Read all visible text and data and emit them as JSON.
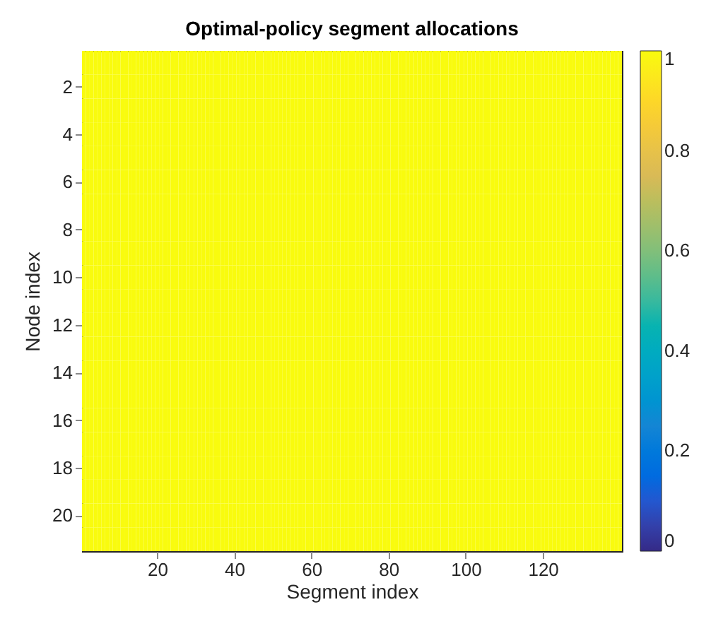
{
  "chart_data": {
    "type": "heatmap",
    "title": "Optimal-policy segment allocations",
    "xlabel": "Segment index",
    "ylabel": "Node index",
    "categories": [
      null,
      null,
      null,
      null,
      null,
      null,
      null,
      null,
      null,
      null,
      null,
      null,
      null,
      null,
      null,
      null,
      null,
      null,
      null,
      "20",
      null,
      null,
      null,
      null,
      null,
      null,
      null,
      null,
      null,
      null,
      null,
      null,
      null,
      null,
      null,
      null,
      null,
      null,
      null,
      "40",
      null,
      null,
      null,
      null,
      null,
      null,
      null,
      null,
      null,
      null,
      null,
      null,
      null,
      null,
      null,
      null,
      null,
      null,
      null,
      "60",
      null,
      null,
      null,
      null,
      null,
      null,
      null,
      null,
      null,
      null,
      null,
      null,
      null,
      null,
      null,
      null,
      null,
      null,
      null,
      "80",
      null,
      null,
      null,
      null,
      null,
      null,
      null,
      null,
      null,
      null,
      null,
      null,
      null,
      null,
      null,
      null,
      null,
      null,
      null,
      "100",
      null,
      null,
      null,
      null,
      null,
      null,
      null,
      null,
      null,
      null,
      null,
      null,
      null,
      null,
      null,
      null,
      null,
      null,
      null,
      "120",
      null,
      null,
      null,
      null,
      null,
      null,
      null,
      null,
      null,
      null,
      null,
      null,
      null,
      null,
      null,
      null,
      null,
      null,
      null,
      null
    ],
    "y_categories": [
      null,
      "2",
      null,
      "4",
      null,
      "6",
      null,
      "8",
      null,
      "10",
      null,
      "12",
      null,
      "14",
      null,
      "16",
      null,
      "18",
      null,
      "20",
      null
    ],
    "cells": [
      [
        1,
        1,
        1,
        1,
        1,
        1,
        1,
        1,
        1,
        1,
        1,
        1,
        1,
        1,
        1,
        1,
        1,
        1,
        1,
        1,
        1,
        1,
        1,
        1,
        1,
        1,
        1,
        1,
        1,
        1,
        1,
        1,
        1,
        1,
        1,
        1,
        1,
        1,
        1,
        1,
        1,
        1,
        1,
        1,
        1,
        1,
        1,
        1,
        1,
        1,
        1,
        1,
        1,
        1,
        1,
        1,
        1,
        1,
        1,
        1,
        1,
        1,
        1,
        1,
        1,
        1,
        1,
        1,
        1,
        1,
        1,
        1,
        1,
        1,
        1,
        1,
        1,
        1,
        1,
        1,
        1,
        1,
        1,
        1,
        1,
        1,
        1,
        1,
        1,
        1,
        1,
        1,
        1,
        1,
        1,
        1,
        1,
        1,
        1,
        1,
        1,
        1,
        1,
        1,
        1,
        1,
        1,
        1,
        1,
        1,
        1,
        1,
        1,
        1,
        1,
        1,
        1,
        1,
        1,
        1,
        1,
        1,
        1,
        1,
        1,
        1,
        1,
        1,
        1,
        1,
        1,
        1,
        1,
        1,
        1,
        1,
        1,
        1,
        1,
        1
      ],
      [
        1,
        1,
        1,
        1,
        1,
        1,
        1,
        1,
        1,
        1,
        1,
        1,
        1,
        1,
        1,
        1,
        1,
        1,
        1,
        1,
        1,
        1,
        1,
        1,
        1,
        1,
        1,
        1,
        1,
        1,
        1,
        1,
        1,
        1,
        1,
        1,
        1,
        1,
        1,
        1,
        1,
        1,
        1,
        1,
        1,
        1,
        1,
        1,
        1,
        1,
        1,
        1,
        1,
        1,
        1,
        1,
        1,
        1,
        1,
        1,
        1,
        1,
        1,
        1,
        1,
        1,
        1,
        1,
        1,
        1,
        1,
        1,
        1,
        1,
        1,
        1,
        1,
        1,
        1,
        1,
        1,
        1,
        1,
        1,
        1,
        1,
        1,
        1,
        1,
        1,
        1,
        1,
        1,
        1,
        1,
        1,
        1,
        1,
        1,
        1,
        1,
        1,
        1,
        1,
        1,
        1,
        1,
        1,
        1,
        1,
        1,
        1,
        1,
        1,
        1,
        1,
        1,
        1,
        1,
        1,
        1,
        1,
        1,
        1,
        1,
        1,
        1,
        1,
        1,
        1,
        1,
        1,
        1,
        1,
        1,
        1,
        1,
        1,
        1,
        1
      ],
      [
        1,
        1,
        1,
        1,
        1,
        1,
        1,
        1,
        1,
        1,
        1,
        1,
        1,
        1,
        1,
        1,
        1,
        1,
        1,
        1,
        1,
        1,
        1,
        1,
        1,
        1,
        1,
        1,
        1,
        1,
        1,
        1,
        1,
        1,
        1,
        1,
        1,
        1,
        1,
        1,
        1,
        1,
        1,
        1,
        1,
        1,
        1,
        1,
        1,
        1,
        1,
        1,
        1,
        1,
        1,
        1,
        1,
        1,
        1,
        1,
        1,
        1,
        1,
        1,
        1,
        1,
        1,
        1,
        1,
        1,
        1,
        1,
        1,
        1,
        1,
        1,
        1,
        1,
        1,
        1,
        1,
        1,
        1,
        1,
        1,
        1,
        1,
        1,
        1,
        1,
        1,
        1,
        1,
        1,
        1,
        1,
        1,
        1,
        1,
        1,
        1,
        1,
        1,
        1,
        1,
        1,
        1,
        1,
        1,
        1,
        1,
        1,
        1,
        1,
        1,
        1,
        1,
        1,
        1,
        1,
        1,
        1,
        1,
        1,
        1,
        1,
        1,
        1,
        1,
        1,
        1,
        1,
        1,
        1,
        1,
        1,
        1,
        1,
        1,
        1
      ],
      [
        1,
        1,
        1,
        1,
        1,
        1,
        1,
        1,
        1,
        1,
        1,
        1,
        1,
        1,
        1,
        1,
        1,
        1,
        1,
        1,
        1,
        1,
        1,
        1,
        1,
        1,
        1,
        1,
        1,
        1,
        1,
        1,
        1,
        1,
        1,
        1,
        1,
        1,
        1,
        1,
        1,
        1,
        1,
        1,
        1,
        1,
        1,
        1,
        1,
        1,
        1,
        1,
        1,
        1,
        1,
        1,
        1,
        1,
        1,
        1,
        1,
        1,
        1,
        1,
        1,
        1,
        1,
        1,
        1,
        1,
        1,
        1,
        1,
        1,
        1,
        1,
        1,
        1,
        1,
        1,
        1,
        1,
        1,
        1,
        1,
        1,
        1,
        1,
        1,
        1,
        1,
        1,
        1,
        1,
        1,
        1,
        1,
        1,
        1,
        1,
        1,
        1,
        1,
        1,
        1,
        1,
        1,
        1,
        1,
        1,
        1,
        1,
        1,
        1,
        1,
        1,
        1,
        1,
        1,
        1,
        1,
        1,
        1,
        1,
        1,
        1,
        1,
        1,
        1,
        1,
        1,
        1,
        1,
        1,
        1,
        1,
        1,
        1,
        1,
        1
      ],
      [
        1,
        1,
        1,
        1,
        1,
        1,
        1,
        1,
        1,
        1,
        1,
        1,
        1,
        1,
        1,
        1,
        1,
        1,
        1,
        1,
        1,
        1,
        1,
        1,
        1,
        1,
        1,
        1,
        1,
        1,
        1,
        1,
        1,
        1,
        1,
        1,
        1,
        1,
        1,
        1,
        1,
        1,
        1,
        1,
        1,
        1,
        1,
        1,
        1,
        1,
        1,
        1,
        1,
        1,
        1,
        1,
        1,
        1,
        1,
        1,
        1,
        1,
        1,
        1,
        1,
        1,
        1,
        1,
        1,
        1,
        1,
        1,
        1,
        1,
        1,
        1,
        1,
        1,
        1,
        1,
        1,
        1,
        1,
        1,
        1,
        1,
        1,
        1,
        1,
        1,
        1,
        1,
        1,
        1,
        1,
        1,
        1,
        1,
        1,
        1,
        1,
        1,
        1,
        1,
        1,
        1,
        1,
        1,
        1,
        1,
        1,
        1,
        1,
        1,
        1,
        1,
        1,
        1,
        1,
        1,
        1,
        1,
        1,
        1,
        1,
        1,
        1,
        1,
        1,
        1,
        1,
        1,
        1,
        1,
        1,
        1,
        1,
        1,
        1,
        1
      ],
      [
        1,
        1,
        1,
        1,
        1,
        1,
        1,
        1,
        1,
        1,
        1,
        1,
        1,
        1,
        1,
        1,
        1,
        1,
        1,
        1,
        1,
        1,
        1,
        1,
        1,
        1,
        1,
        1,
        1,
        1,
        1,
        1,
        1,
        1,
        1,
        1,
        1,
        1,
        1,
        1,
        1,
        1,
        1,
        1,
        1,
        1,
        1,
        1,
        1,
        1,
        1,
        1,
        1,
        1,
        1,
        1,
        1,
        1,
        1,
        1,
        1,
        1,
        1,
        1,
        1,
        1,
        1,
        1,
        1,
        1,
        1,
        1,
        1,
        1,
        1,
        1,
        1,
        1,
        1,
        1,
        1,
        1,
        1,
        1,
        1,
        1,
        1,
        1,
        1,
        1,
        1,
        1,
        1,
        1,
        1,
        1,
        1,
        1,
        1,
        1,
        1,
        1,
        1,
        1,
        1,
        1,
        1,
        1,
        1,
        1,
        1,
        1,
        1,
        1,
        1,
        1,
        1,
        1,
        1,
        1,
        1,
        1,
        1,
        1,
        1,
        1,
        1,
        1,
        1,
        1,
        1,
        1,
        1,
        1,
        1,
        1,
        1,
        1,
        1,
        1
      ],
      [
        1,
        1,
        1,
        1,
        1,
        1,
        1,
        1,
        1,
        1,
        1,
        1,
        1,
        1,
        1,
        1,
        1,
        1,
        1,
        1,
        1,
        1,
        1,
        1,
        1,
        1,
        1,
        1,
        1,
        1,
        1,
        1,
        1,
        1,
        1,
        1,
        1,
        1,
        1,
        1,
        1,
        1,
        1,
        1,
        1,
        1,
        1,
        1,
        1,
        1,
        1,
        1,
        1,
        1,
        1,
        1,
        1,
        1,
        1,
        1,
        1,
        1,
        1,
        1,
        1,
        1,
        1,
        1,
        1,
        1,
        1,
        1,
        1,
        1,
        1,
        1,
        1,
        1,
        1,
        1,
        1,
        1,
        1,
        1,
        1,
        1,
        1,
        1,
        1,
        1,
        1,
        1,
        1,
        1,
        1,
        1,
        1,
        1,
        1,
        1,
        1,
        1,
        1,
        1,
        1,
        1,
        1,
        1,
        1,
        1,
        1,
        1,
        1,
        1,
        1,
        1,
        1,
        1,
        1,
        1,
        1,
        1,
        1,
        1,
        1,
        1,
        1,
        1,
        1,
        1,
        1,
        1,
        1,
        1,
        1,
        1,
        1,
        1,
        1,
        1
      ],
      [
        1,
        1,
        1,
        1,
        1,
        1,
        1,
        1,
        1,
        1,
        1,
        1,
        1,
        1,
        1,
        1,
        1,
        1,
        1,
        1,
        1,
        1,
        1,
        1,
        1,
        1,
        1,
        1,
        1,
        1,
        1,
        1,
        1,
        1,
        1,
        1,
        1,
        1,
        1,
        1,
        1,
        1,
        1,
        1,
        1,
        1,
        1,
        1,
        1,
        1,
        1,
        1,
        1,
        1,
        1,
        1,
        1,
        1,
        1,
        1,
        1,
        1,
        1,
        1,
        1,
        1,
        1,
        1,
        1,
        1,
        1,
        1,
        1,
        1,
        1,
        1,
        1,
        1,
        1,
        1,
        1,
        1,
        1,
        1,
        1,
        1,
        1,
        1,
        1,
        1,
        1,
        1,
        1,
        1,
        1,
        1,
        1,
        1,
        1,
        1,
        1,
        1,
        1,
        1,
        1,
        1,
        1,
        1,
        1,
        1,
        1,
        1,
        1,
        1,
        1,
        1,
        1,
        1,
        1,
        1,
        1,
        1,
        1,
        1,
        1,
        1,
        1,
        1,
        1,
        1,
        1,
        1,
        1,
        1,
        1,
        1,
        1,
        1,
        1,
        1
      ],
      [
        1,
        1,
        1,
        1,
        1,
        1,
        1,
        1,
        1,
        1,
        1,
        1,
        1,
        1,
        1,
        1,
        1,
        1,
        1,
        1,
        1,
        1,
        1,
        1,
        1,
        1,
        1,
        1,
        1,
        1,
        1,
        1,
        1,
        1,
        1,
        1,
        1,
        1,
        1,
        1,
        1,
        1,
        1,
        1,
        1,
        1,
        1,
        1,
        1,
        1,
        1,
        1,
        1,
        1,
        1,
        1,
        1,
        1,
        1,
        1,
        1,
        1,
        1,
        1,
        1,
        1,
        1,
        1,
        1,
        1,
        1,
        1,
        1,
        1,
        1,
        1,
        1,
        1,
        1,
        1,
        1,
        1,
        1,
        1,
        1,
        1,
        1,
        1,
        1,
        1,
        1,
        1,
        1,
        1,
        1,
        1,
        1,
        1,
        1,
        1,
        1,
        1,
        1,
        1,
        1,
        1,
        1,
        1,
        1,
        1,
        1,
        1,
        1,
        1,
        1,
        1,
        1,
        1,
        1,
        1,
        1,
        1,
        1,
        1,
        1,
        1,
        1,
        1,
        1,
        1,
        1,
        1,
        1,
        1,
        1,
        1,
        1,
        1,
        1,
        1
      ],
      [
        1,
        1,
        1,
        1,
        1,
        1,
        1,
        1,
        1,
        1,
        1,
        1,
        1,
        1,
        1,
        1,
        1,
        1,
        1,
        1,
        1,
        1,
        1,
        1,
        1,
        1,
        1,
        1,
        1,
        1,
        1,
        1,
        1,
        1,
        1,
        1,
        1,
        1,
        1,
        1,
        1,
        1,
        1,
        1,
        1,
        1,
        1,
        1,
        1,
        1,
        1,
        1,
        1,
        1,
        1,
        1,
        1,
        1,
        1,
        1,
        1,
        1,
        1,
        1,
        1,
        1,
        1,
        1,
        1,
        1,
        1,
        1,
        1,
        1,
        1,
        1,
        1,
        1,
        1,
        1,
        1,
        1,
        1,
        1,
        1,
        1,
        1,
        1,
        1,
        1,
        1,
        1,
        1,
        1,
        1,
        1,
        1,
        1,
        1,
        1,
        1,
        1,
        1,
        1,
        1,
        1,
        1,
        1,
        1,
        1,
        1,
        1,
        1,
        1,
        1,
        1,
        1,
        1,
        1,
        1,
        1,
        1,
        1,
        1,
        1,
        1,
        1,
        1,
        1,
        1,
        1,
        1,
        1,
        1,
        1,
        1,
        1,
        1,
        1,
        1
      ],
      [
        1,
        1,
        1,
        1,
        1,
        1,
        1,
        1,
        1,
        1,
        1,
        1,
        1,
        1,
        1,
        1,
        1,
        1,
        1,
        1,
        1,
        1,
        1,
        1,
        1,
        1,
        1,
        1,
        1,
        1,
        1,
        1,
        1,
        1,
        1,
        1,
        1,
        1,
        1,
        1,
        1,
        1,
        1,
        1,
        1,
        1,
        1,
        1,
        1,
        1,
        1,
        1,
        1,
        1,
        1,
        1,
        1,
        1,
        1,
        1,
        1,
        1,
        1,
        1,
        1,
        1,
        1,
        1,
        1,
        1,
        1,
        1,
        1,
        1,
        1,
        1,
        1,
        1,
        1,
        1,
        1,
        1,
        1,
        1,
        1,
        1,
        1,
        1,
        1,
        1,
        1,
        1,
        1,
        1,
        1,
        1,
        1,
        1,
        1,
        1,
        1,
        1,
        1,
        1,
        1,
        1,
        1,
        1,
        1,
        1,
        1,
        1,
        1,
        1,
        1,
        1,
        1,
        1,
        1,
        1,
        1,
        1,
        1,
        1,
        1,
        1,
        1,
        1,
        1,
        1,
        1,
        1,
        1,
        1,
        1,
        1,
        1,
        1,
        1,
        1
      ],
      [
        1,
        1,
        1,
        1,
        1,
        1,
        1,
        1,
        1,
        1,
        1,
        1,
        1,
        1,
        1,
        1,
        1,
        1,
        1,
        1,
        1,
        1,
        1,
        1,
        1,
        1,
        1,
        1,
        1,
        1,
        1,
        1,
        1,
        1,
        1,
        1,
        1,
        1,
        1,
        1,
        1,
        1,
        1,
        1,
        1,
        1,
        1,
        1,
        1,
        1,
        1,
        1,
        1,
        1,
        1,
        1,
        1,
        1,
        1,
        1,
        1,
        1,
        1,
        1,
        1,
        1,
        1,
        1,
        1,
        1,
        1,
        1,
        1,
        1,
        1,
        1,
        1,
        1,
        1,
        1,
        1,
        1,
        1,
        1,
        1,
        1,
        1,
        1,
        1,
        1,
        1,
        1,
        1,
        1,
        1,
        1,
        1,
        1,
        1,
        1,
        1,
        1,
        1,
        1,
        1,
        1,
        1,
        1,
        1,
        1,
        1,
        1,
        1,
        1,
        1,
        1,
        1,
        1,
        1,
        1,
        1,
        1,
        1,
        1,
        1,
        1,
        1,
        1,
        1,
        1,
        1,
        1,
        1,
        1,
        1,
        1,
        1,
        1,
        1,
        1
      ],
      [
        1,
        1,
        1,
        1,
        1,
        1,
        1,
        1,
        1,
        1,
        1,
        1,
        1,
        1,
        1,
        1,
        1,
        1,
        1,
        1,
        1,
        1,
        1,
        1,
        1,
        1,
        1,
        1,
        1,
        1,
        1,
        1,
        1,
        1,
        1,
        1,
        1,
        1,
        1,
        1,
        1,
        1,
        1,
        1,
        1,
        1,
        1,
        1,
        1,
        1,
        1,
        1,
        1,
        1,
        1,
        1,
        1,
        1,
        1,
        1,
        1,
        1,
        1,
        1,
        1,
        1,
        1,
        1,
        1,
        1,
        1,
        1,
        1,
        1,
        1,
        1,
        1,
        1,
        1,
        1,
        1,
        1,
        1,
        1,
        1,
        1,
        1,
        1,
        1,
        1,
        1,
        1,
        1,
        1,
        1,
        1,
        1,
        1,
        1,
        1,
        1,
        1,
        1,
        1,
        1,
        1,
        1,
        1,
        1,
        1,
        1,
        1,
        1,
        1,
        1,
        1,
        1,
        1,
        1,
        1,
        1,
        1,
        1,
        1,
        1,
        1,
        1,
        1,
        1,
        1,
        1,
        1,
        1,
        1,
        1,
        1,
        1,
        1,
        1,
        1
      ],
      [
        1,
        1,
        1,
        1,
        1,
        1,
        1,
        1,
        1,
        1,
        1,
        1,
        1,
        1,
        1,
        1,
        1,
        1,
        1,
        1,
        1,
        1,
        1,
        1,
        1,
        1,
        1,
        1,
        1,
        1,
        1,
        1,
        1,
        1,
        1,
        1,
        1,
        1,
        1,
        1,
        1,
        1,
        1,
        1,
        1,
        1,
        1,
        1,
        1,
        1,
        1,
        1,
        1,
        1,
        1,
        1,
        1,
        1,
        1,
        1,
        1,
        1,
        1,
        1,
        1,
        1,
        1,
        1,
        1,
        1,
        1,
        1,
        1,
        1,
        1,
        1,
        1,
        1,
        1,
        1,
        1,
        1,
        1,
        1,
        1,
        1,
        1,
        1,
        1,
        1,
        1,
        1,
        1,
        1,
        1,
        1,
        1,
        1,
        1,
        1,
        1,
        1,
        1,
        1,
        1,
        1,
        1,
        1,
        1,
        1,
        1,
        1,
        1,
        1,
        1,
        1,
        1,
        1,
        1,
        1,
        1,
        1,
        1,
        1,
        1,
        1,
        1,
        1,
        1,
        1,
        1,
        1,
        1,
        1,
        1,
        1,
        1,
        1,
        1,
        1
      ],
      [
        1,
        1,
        1,
        1,
        1,
        1,
        1,
        1,
        1,
        1,
        1,
        1,
        1,
        1,
        1,
        1,
        1,
        1,
        1,
        1,
        1,
        1,
        1,
        1,
        1,
        1,
        1,
        1,
        1,
        1,
        1,
        1,
        1,
        1,
        1,
        1,
        1,
        1,
        1,
        1,
        1,
        1,
        1,
        1,
        1,
        1,
        1,
        1,
        1,
        1,
        1,
        1,
        1,
        1,
        1,
        1,
        1,
        1,
        1,
        1,
        1,
        1,
        1,
        1,
        1,
        1,
        1,
        1,
        1,
        1,
        1,
        1,
        1,
        1,
        1,
        1,
        1,
        1,
        1,
        1,
        1,
        1,
        1,
        1,
        1,
        1,
        1,
        1,
        1,
        1,
        1,
        1,
        1,
        1,
        1,
        1,
        1,
        1,
        1,
        1,
        1,
        1,
        1,
        1,
        1,
        1,
        1,
        1,
        1,
        1,
        1,
        1,
        1,
        1,
        1,
        1,
        1,
        1,
        1,
        1,
        1,
        1,
        1,
        1,
        1,
        1,
        1,
        1,
        1,
        1,
        1,
        1,
        1,
        1,
        1,
        1,
        1,
        1,
        1,
        1
      ],
      [
        1,
        1,
        1,
        1,
        1,
        1,
        1,
        1,
        1,
        1,
        1,
        1,
        1,
        1,
        1,
        1,
        1,
        1,
        1,
        1,
        1,
        1,
        1,
        1,
        1,
        1,
        1,
        1,
        1,
        1,
        1,
        1,
        1,
        1,
        1,
        1,
        1,
        1,
        1,
        1,
        1,
        1,
        1,
        1,
        1,
        1,
        1,
        1,
        1,
        1,
        1,
        1,
        1,
        1,
        1,
        1,
        1,
        1,
        1,
        1,
        1,
        1,
        1,
        1,
        1,
        1,
        1,
        1,
        1,
        1,
        1,
        1,
        1,
        1,
        1,
        1,
        1,
        1,
        1,
        1,
        1,
        1,
        1,
        1,
        1,
        1,
        1,
        1,
        1,
        1,
        1,
        1,
        1,
        1,
        1,
        1,
        1,
        1,
        1,
        1,
        1,
        1,
        1,
        1,
        1,
        1,
        1,
        1,
        1,
        1,
        1,
        1,
        1,
        1,
        1,
        1,
        1,
        1,
        1,
        1,
        1,
        1,
        1,
        1,
        1,
        1,
        1,
        1,
        1,
        1,
        1,
        1,
        1,
        1,
        1,
        1,
        1,
        1,
        1,
        1
      ],
      [
        1,
        1,
        1,
        1,
        1,
        1,
        1,
        1,
        1,
        1,
        1,
        1,
        1,
        1,
        1,
        1,
        1,
        1,
        1,
        1,
        1,
        1,
        1,
        1,
        1,
        1,
        1,
        1,
        1,
        1,
        1,
        1,
        1,
        1,
        1,
        1,
        1,
        1,
        1,
        1,
        1,
        1,
        1,
        1,
        1,
        1,
        1,
        1,
        1,
        1,
        1,
        1,
        1,
        1,
        1,
        1,
        1,
        1,
        1,
        1,
        1,
        1,
        1,
        1,
        1,
        1,
        1,
        1,
        1,
        1,
        1,
        1,
        1,
        1,
        1,
        1,
        1,
        1,
        1,
        1,
        1,
        1,
        1,
        1,
        1,
        1,
        1,
        1,
        1,
        1,
        1,
        1,
        1,
        1,
        1,
        1,
        1,
        1,
        1,
        1,
        1,
        1,
        1,
        1,
        1,
        1,
        1,
        1,
        1,
        1,
        1,
        1,
        1,
        1,
        1,
        1,
        1,
        1,
        1,
        1,
        1,
        1,
        1,
        1,
        1,
        1,
        1,
        1,
        1,
        1,
        1,
        1,
        1,
        1,
        1,
        1,
        1,
        1,
        1,
        1
      ],
      [
        1,
        1,
        1,
        1,
        1,
        1,
        1,
        1,
        1,
        1,
        1,
        1,
        1,
        1,
        1,
        1,
        1,
        1,
        1,
        1,
        1,
        1,
        1,
        1,
        1,
        1,
        1,
        1,
        1,
        1,
        1,
        1,
        1,
        1,
        1,
        1,
        1,
        1,
        1,
        1,
        1,
        1,
        1,
        1,
        1,
        1,
        1,
        1,
        1,
        1,
        1,
        1,
        1,
        1,
        1,
        1,
        1,
        1,
        1,
        1,
        1,
        1,
        1,
        1,
        1,
        1,
        1,
        1,
        1,
        1,
        1,
        1,
        1,
        1,
        1,
        1,
        1,
        1,
        1,
        1,
        1,
        1,
        1,
        1,
        1,
        1,
        1,
        1,
        1,
        1,
        1,
        1,
        1,
        1,
        1,
        1,
        1,
        1,
        1,
        1,
        1,
        1,
        1,
        1,
        1,
        1,
        1,
        1,
        1,
        1,
        1,
        1,
        1,
        1,
        1,
        1,
        1,
        1,
        1,
        1,
        1,
        1,
        1,
        1,
        1,
        1,
        1,
        1,
        1,
        1,
        1,
        1,
        1,
        1,
        1,
        1,
        1,
        1,
        1,
        1
      ],
      [
        1,
        1,
        1,
        1,
        1,
        1,
        1,
        1,
        1,
        1,
        1,
        1,
        1,
        1,
        1,
        1,
        1,
        1,
        1,
        1,
        1,
        1,
        1,
        1,
        1,
        1,
        1,
        1,
        1,
        1,
        1,
        1,
        1,
        1,
        1,
        1,
        1,
        1,
        1,
        1,
        1,
        1,
        1,
        1,
        1,
        1,
        1,
        1,
        1,
        1,
        1,
        1,
        1,
        1,
        1,
        1,
        1,
        1,
        1,
        1,
        1,
        1,
        1,
        1,
        1,
        1,
        1,
        1,
        1,
        1,
        1,
        1,
        1,
        1,
        1,
        1,
        1,
        1,
        1,
        1,
        1,
        1,
        1,
        1,
        1,
        1,
        1,
        1,
        1,
        1,
        1,
        1,
        1,
        1,
        1,
        1,
        1,
        1,
        1,
        1,
        1,
        1,
        1,
        1,
        1,
        1,
        1,
        1,
        1,
        1,
        1,
        1,
        1,
        1,
        1,
        1,
        1,
        1,
        1,
        1,
        1,
        1,
        1,
        1,
        1,
        1,
        1,
        1,
        1,
        1,
        1,
        1,
        1,
        1,
        1,
        1,
        1,
        1,
        1,
        1
      ],
      [
        1,
        1,
        1,
        1,
        1,
        1,
        1,
        1,
        1,
        1,
        1,
        1,
        1,
        1,
        1,
        1,
        1,
        1,
        1,
        1,
        1,
        1,
        1,
        1,
        1,
        1,
        1,
        1,
        1,
        1,
        1,
        1,
        1,
        1,
        1,
        1,
        1,
        1,
        1,
        1,
        1,
        1,
        1,
        1,
        1,
        1,
        1,
        1,
        1,
        1,
        1,
        1,
        1,
        1,
        1,
        1,
        1,
        1,
        1,
        1,
        1,
        1,
        1,
        1,
        1,
        1,
        1,
        1,
        1,
        1,
        1,
        1,
        1,
        1,
        1,
        1,
        1,
        1,
        1,
        1,
        1,
        1,
        1,
        1,
        1,
        1,
        1,
        1,
        1,
        1,
        1,
        1,
        1,
        1,
        1,
        1,
        1,
        1,
        1,
        1,
        1,
        1,
        1,
        1,
        1,
        1,
        1,
        1,
        1,
        1,
        1,
        1,
        1,
        1,
        1,
        1,
        1,
        1,
        1,
        1,
        1,
        1,
        1,
        1,
        1,
        1,
        1,
        1,
        1,
        1,
        1,
        1,
        1,
        1,
        1,
        1,
        1,
        1,
        1,
        1
      ],
      [
        1,
        1,
        1,
        1,
        1,
        1,
        1,
        1,
        1,
        1,
        1,
        1,
        1,
        1,
        1,
        1,
        1,
        1,
        1,
        1,
        1,
        1,
        1,
        1,
        1,
        1,
        1,
        1,
        1,
        1,
        1,
        1,
        1,
        1,
        1,
        1,
        1,
        1,
        1,
        1,
        1,
        1,
        1,
        1,
        1,
        1,
        1,
        1,
        1,
        1,
        1,
        1,
        1,
        1,
        1,
        1,
        1,
        1,
        1,
        1,
        1,
        1,
        1,
        1,
        1,
        1,
        1,
        1,
        1,
        1,
        1,
        1,
        1,
        1,
        1,
        1,
        1,
        1,
        1,
        1,
        1,
        1,
        1,
        1,
        1,
        1,
        1,
        1,
        1,
        1,
        1,
        1,
        1,
        1,
        1,
        1,
        1,
        1,
        1,
        1,
        1,
        1,
        1,
        1,
        1,
        1,
        1,
        1,
        1,
        1,
        1,
        1,
        1,
        1,
        1,
        1,
        1,
        1,
        1,
        1,
        1,
        1,
        1,
        1,
        1,
        1,
        1,
        1,
        1,
        1,
        1,
        1,
        1,
        1,
        1,
        1,
        1,
        1,
        1,
        1
      ]
    ],
    "clim": [
      0,
      1
    ],
    "cticks": [
      0,
      0.2,
      0.4,
      0.6,
      0.8,
      1
    ]
  }
}
